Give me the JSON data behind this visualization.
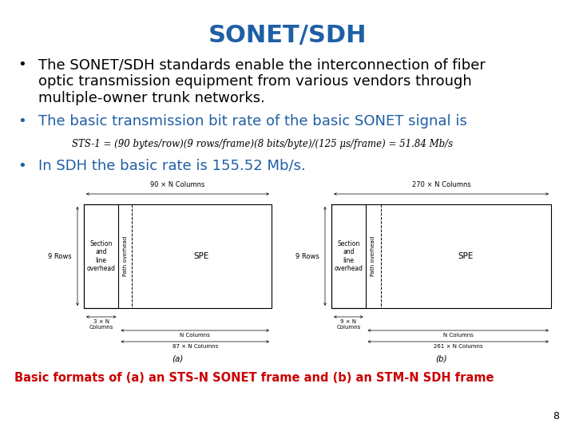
{
  "title": "SONET/SDH",
  "title_color": "#1F5FA6",
  "title_fontsize": 22,
  "bullet1_line1": "The SONET/SDH standards enable the interconnection of fiber",
  "bullet1_line2": "optic transmission equipment from various vendors through",
  "bullet1_line3": "multiple-owner trunk networks.",
  "bullet2": "The basic transmission bit rate of the basic SONET signal is",
  "bullet2_color": "#1F5FA6",
  "formula": "STS-1 = (90 bytes/row)(9 rows/frame)(8 bits/byte)/(125 μs/frame) = 51.84 Mb/s",
  "bullet3": "In SDH the basic rate is 155.52 Mb/s.",
  "bullet3_color": "#1F5FA6",
  "caption": "Basic formats of (a) an STS-N SONET frame and (b) an STM-N SDH frame",
  "caption_color": "#CC0000",
  "page_number": "8",
  "bg_color": "#FFFFFF",
  "text_color": "#000000"
}
